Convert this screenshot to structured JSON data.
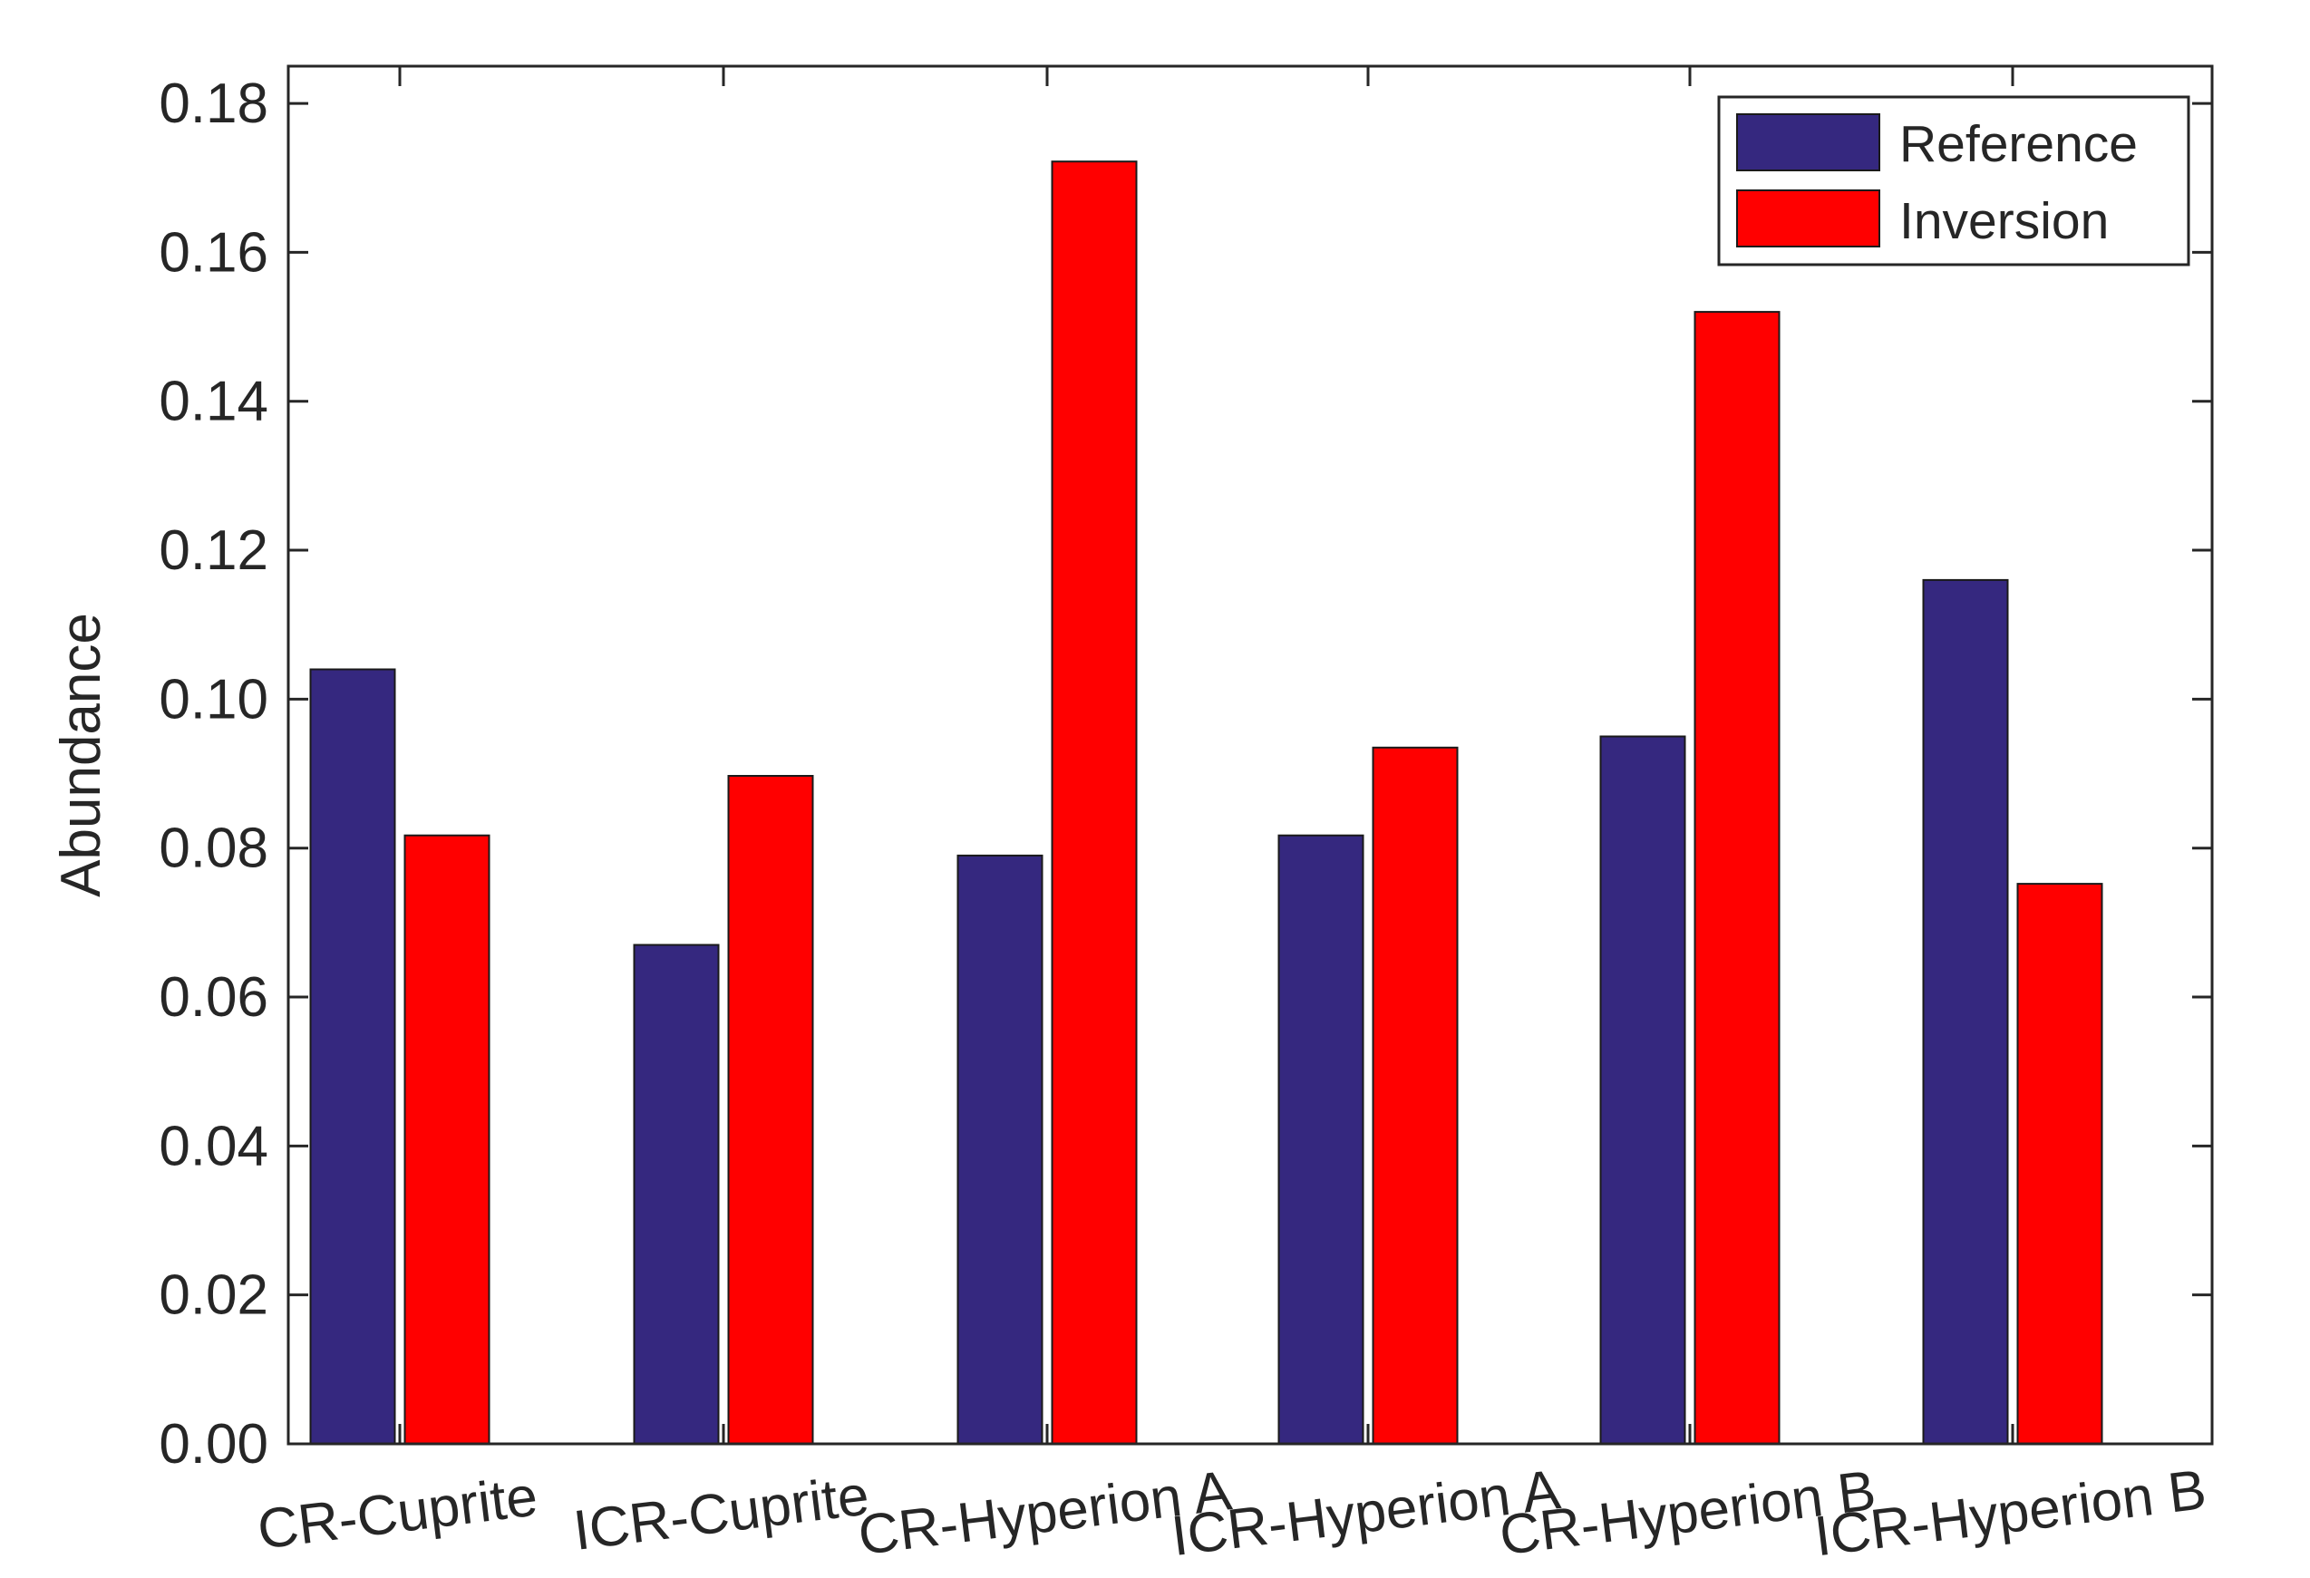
{
  "chart_data": {
    "type": "bar",
    "title": "",
    "xlabel": "",
    "ylabel": "Abundance",
    "categories": [
      "CR-Cuprite",
      "ICR-Cuprite",
      "CR-Hyperion A",
      "ICR-Hyperion A",
      "CR-Hyperion B",
      "ICR-Hyperion B"
    ],
    "series": [
      {
        "name": "Reference",
        "color": "#35287f",
        "values": [
          0.104,
          0.067,
          0.079,
          0.0817,
          0.095,
          0.116
        ]
      },
      {
        "name": "Inversion",
        "color": "#ff0000",
        "values": [
          0.0817,
          0.0897,
          0.1722,
          0.0935,
          0.152,
          0.0752
        ]
      }
    ],
    "ylim": [
      0,
      0.185
    ],
    "yticks": [
      0.0,
      0.02,
      0.04,
      0.06,
      0.08,
      0.1,
      0.12,
      0.14,
      0.16,
      0.18
    ],
    "ytick_labels": [
      "0.00",
      "0.02",
      "0.04",
      "0.06",
      "0.08",
      "0.10",
      "0.12",
      "0.14",
      "0.16",
      "0.18"
    ],
    "grid": false,
    "legend_position": "top-right"
  }
}
